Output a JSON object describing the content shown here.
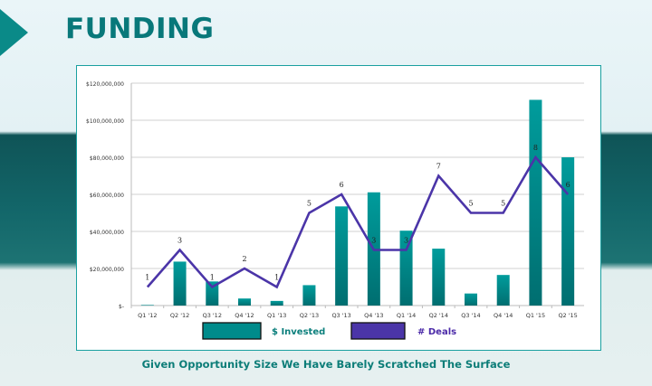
{
  "slide": {
    "title": "FUNDING",
    "caption": "Given Opportunity Size We Have Barely Scratched The Surface"
  },
  "chart_data": {
    "type": "bar+line",
    "categories": [
      "Q1 '12",
      "Q2 '12",
      "Q3 '12",
      "Q4 '12",
      "Q1 '13",
      "Q2 '13",
      "Q3 '13",
      "Q4 '13",
      "Q1 '14",
      "Q2 '14",
      "Q3 '14",
      "Q4 '14",
      "Q1 '15",
      "Q2 '15"
    ],
    "series": [
      {
        "name": "$ Invested",
        "type": "bar",
        "color": "#008b8b",
        "values": [
          300000,
          23700000,
          13000000,
          3800000,
          2500000,
          11000000,
          53500000,
          61100000,
          40400000,
          30700000,
          6500000,
          16500000,
          111000000,
          80000000
        ]
      },
      {
        "name": "# Deals",
        "type": "line",
        "color": "#4b35a8",
        "values": [
          1,
          3,
          1,
          2,
          1,
          5,
          6,
          3,
          3,
          7,
          5,
          5,
          8,
          6
        ]
      }
    ],
    "y_ticks": [
      "$-",
      "$20,000,000",
      "$40,000,000",
      "$60,000,000",
      "$80,000,000",
      "$100,000,000",
      "$120,000,000"
    ],
    "ylim": [
      0,
      120000000
    ],
    "grid": true,
    "legend": "bottom"
  }
}
